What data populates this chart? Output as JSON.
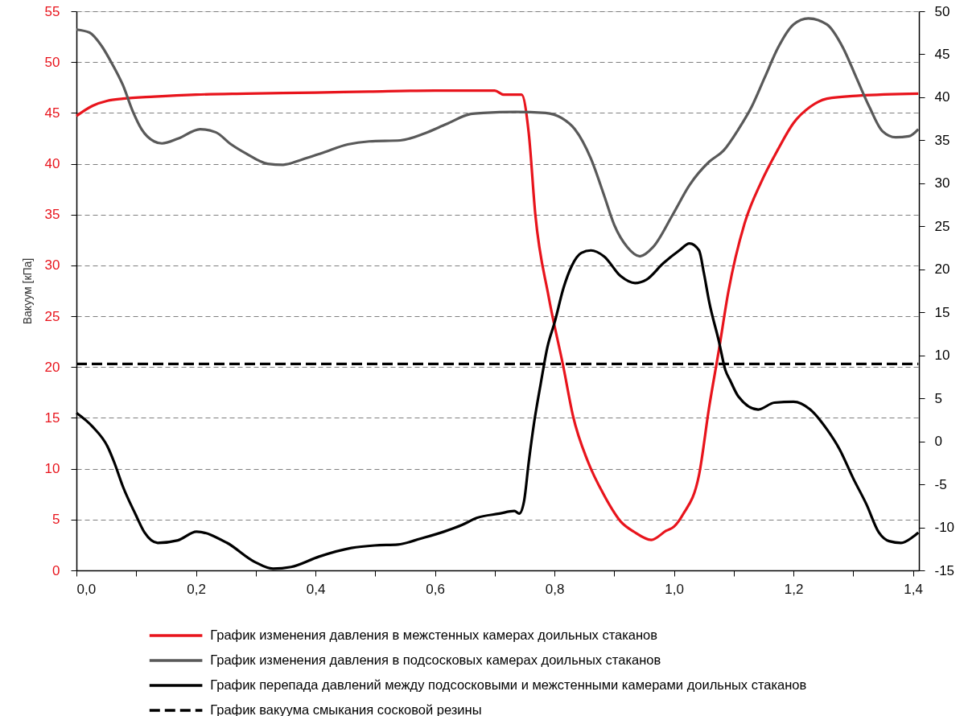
{
  "chart_data": {
    "type": "line",
    "ylabel": "Вакуум [кПа]",
    "xlim": [
      0,
      1.41
    ],
    "xticks": [
      {
        "value": 0,
        "label": "0,0"
      },
      {
        "value": 0.1,
        "label": null
      },
      {
        "value": 0.2,
        "label": "0,2"
      },
      {
        "value": 0.3,
        "label": null
      },
      {
        "value": 0.4,
        "label": "0,4"
      },
      {
        "value": 0.5,
        "label": null
      },
      {
        "value": 0.6,
        "label": "0,6"
      },
      {
        "value": 0.7,
        "label": null
      },
      {
        "value": 0.8,
        "label": "0,8"
      },
      {
        "value": 0.9,
        "label": null
      },
      {
        "value": 1.0,
        "label": "1,0"
      },
      {
        "value": 1.1,
        "label": null
      },
      {
        "value": 1.2,
        "label": "1,2"
      },
      {
        "value": 1.3,
        "label": null
      },
      {
        "value": 1.4,
        "label": "1,4"
      }
    ],
    "ylim": [
      0,
      55
    ],
    "yticks": [
      0,
      5,
      10,
      15,
      20,
      25,
      30,
      35,
      40,
      45,
      50,
      55
    ],
    "y2lim": [
      -15,
      50
    ],
    "y2ticks": [
      -15,
      -10,
      -5,
      0,
      5,
      10,
      15,
      20,
      25,
      30,
      35,
      40,
      45,
      50
    ],
    "grid": "y",
    "legend": "bottom",
    "series": [
      {
        "name": "График изменения давления в межстенных камерах доильных стаканов",
        "color": "#e8141c",
        "axis": "y",
        "x": [
          0,
          0.027,
          0.052,
          0.078,
          0.13,
          0.2,
          0.284,
          0.4,
          0.49,
          0.6,
          0.7,
          0.715,
          0.745,
          0.757,
          0.768,
          0.79,
          0.815,
          0.831,
          0.856,
          0.883,
          0.911,
          0.933,
          0.962,
          0.987,
          1.0,
          1.015,
          1.042,
          1.059,
          1.075,
          1.091,
          1.118,
          1.146,
          1.174,
          1.2,
          1.228,
          1.256,
          1.31,
          1.409
        ],
        "values": [
          44.7,
          45.7,
          46.2,
          46.4,
          46.6,
          46.8,
          46.9,
          47.0,
          47.1,
          47.2,
          47.2,
          46.8,
          46.8,
          43.0,
          35.0,
          27.0,
          20.0,
          15.2,
          10.7,
          7.4,
          4.8,
          3.8,
          3.0,
          3.9,
          4.3,
          5.5,
          9.4,
          16.1,
          21.6,
          27.4,
          34.1,
          38.2,
          41.4,
          44.0,
          45.6,
          46.4,
          46.7,
          46.9
        ]
      },
      {
        "name": "График изменения давления в подсосковых камерах доильных стаканов",
        "color": "#595959",
        "axis": "y",
        "x": [
          0,
          0.022,
          0.042,
          0.06,
          0.078,
          0.094,
          0.109,
          0.13,
          0.143,
          0.171,
          0.207,
          0.233,
          0.259,
          0.284,
          0.32,
          0.346,
          0.377,
          0.413,
          0.454,
          0.49,
          0.542,
          0.583,
          0.619,
          0.66,
          0.681,
          0.735,
          0.785,
          0.812,
          0.834,
          0.861,
          0.883,
          0.9,
          0.922,
          0.943,
          0.965,
          0.998,
          1.026,
          1.059,
          1.083,
          1.108,
          1.13,
          1.152,
          1.174,
          1.2,
          1.225,
          1.256,
          1.283,
          1.305,
          1.327,
          1.349,
          1.371,
          1.393,
          1.409
        ],
        "values": [
          53.2,
          52.9,
          51.6,
          49.8,
          47.7,
          45.2,
          43.4,
          42.2,
          42.0,
          42.5,
          43.4,
          43.1,
          41.9,
          41.0,
          40.0,
          39.9,
          40.4,
          41.1,
          41.9,
          42.2,
          42.3,
          43.0,
          43.9,
          44.9,
          45.0,
          45.1,
          45.0,
          44.5,
          43.4,
          40.5,
          36.9,
          34.0,
          31.8,
          30.9,
          31.8,
          35.0,
          37.9,
          40.2,
          41.3,
          43.4,
          45.6,
          48.5,
          51.4,
          53.7,
          54.3,
          53.7,
          51.4,
          48.5,
          45.6,
          43.2,
          42.6,
          42.7,
          43.4
        ]
      },
      {
        "name": "График перепада давлений между подсосковыми и межстенными камерами доильных стаканов",
        "color": "#000000",
        "axis": "y2",
        "x": [
          0,
          0.027,
          0.052,
          0.063,
          0.078,
          0.099,
          0.114,
          0.136,
          0.17,
          0.201,
          0.252,
          0.298,
          0.329,
          0.359,
          0.406,
          0.46,
          0.499,
          0.538,
          0.576,
          0.615,
          0.646,
          0.67,
          0.708,
          0.733,
          0.741,
          0.749,
          0.757,
          0.766,
          0.777,
          0.788,
          0.801,
          0.815,
          0.829,
          0.845,
          0.861,
          0.883,
          0.911,
          0.935,
          0.954,
          0.982,
          1.009,
          1.026,
          1.042,
          1.05,
          1.059,
          1.075,
          1.086,
          1.094,
          1.108,
          1.141,
          1.168,
          1.2,
          1.228,
          1.256,
          1.277,
          1.3,
          1.322,
          1.343,
          1.36,
          1.38,
          1.4,
          1.409
        ],
        "values": [
          3.3,
          1.7,
          -0.6,
          -2.4,
          -5.3,
          -8.5,
          -10.6,
          -11.8,
          -11.5,
          -10.5,
          -11.8,
          -14.0,
          -14.8,
          -14.6,
          -13.4,
          -12.4,
          -12.1,
          -12.0,
          -11.3,
          -10.5,
          -9.7,
          -8.9,
          -8.4,
          -8.1,
          -8.4,
          -7.0,
          -2.4,
          2.2,
          6.7,
          10.9,
          14.0,
          17.8,
          20.4,
          21.9,
          22.2,
          21.5,
          19.2,
          18.4,
          18.8,
          20.7,
          22.2,
          23.0,
          22.2,
          19.6,
          16.2,
          11.7,
          8.3,
          7.1,
          5.2,
          3.7,
          4.5,
          4.6,
          3.7,
          1.4,
          -0.9,
          -4.3,
          -7.3,
          -10.6,
          -11.6,
          -11.8,
          -11.1,
          -10.6
        ]
      },
      {
        "name": "График вакуума смыкания сосковой резины",
        "color": "#000000",
        "axis": "y2",
        "line_style": "dashed",
        "x": [
          0,
          1.409
        ],
        "values": [
          9,
          9
        ]
      }
    ]
  }
}
